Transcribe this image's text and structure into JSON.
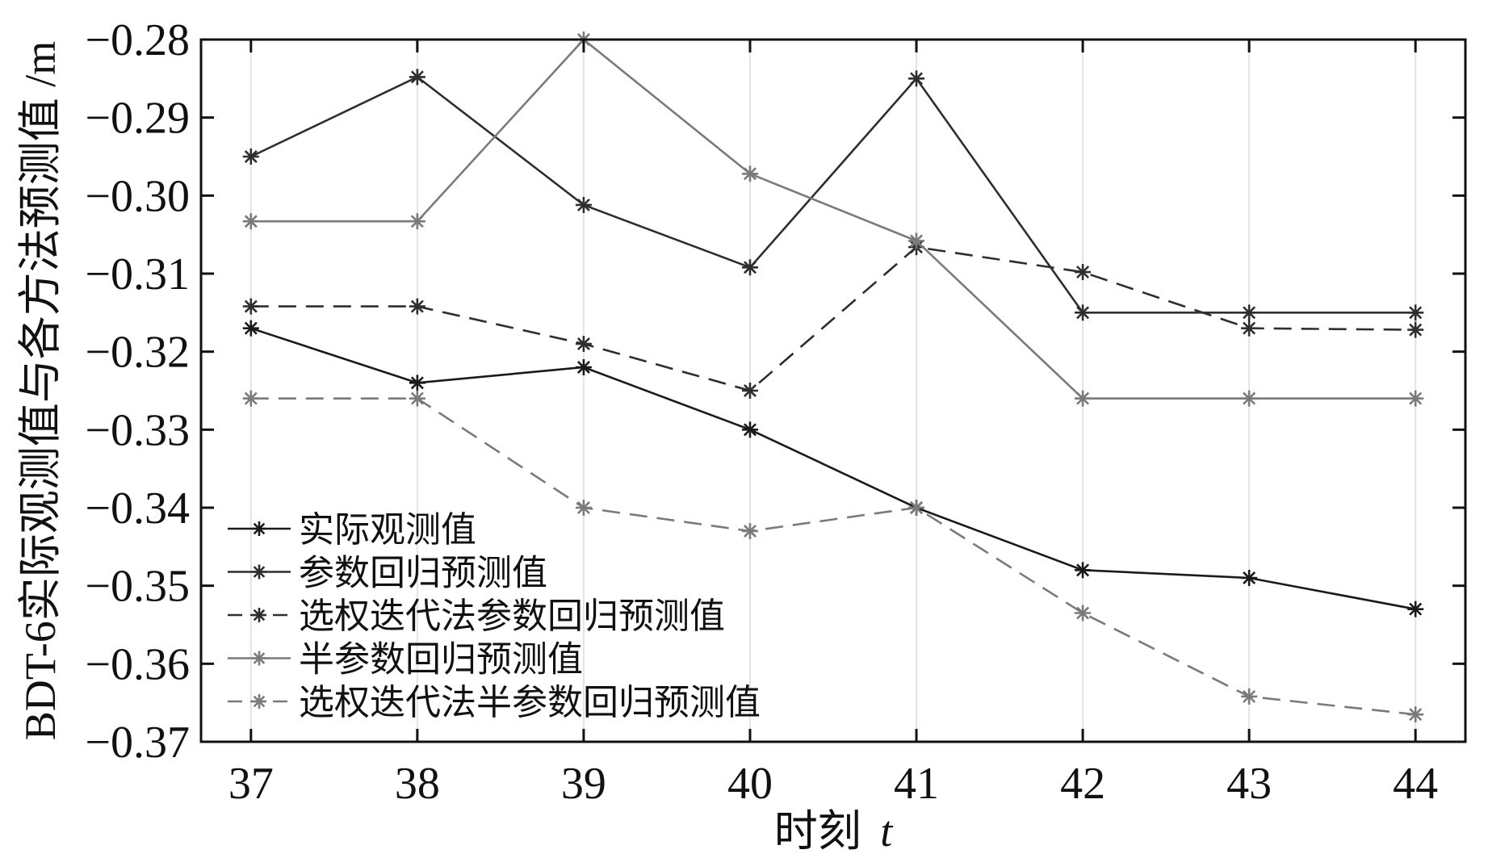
{
  "chart_data": {
    "type": "line",
    "xlabel": "时刻 t",
    "xlabel_main": "时刻",
    "xlabel_var": "t",
    "ylabel": "BDT-6实际观测值与各方法预测值 /m",
    "x": [
      37,
      38,
      39,
      40,
      41,
      42,
      43,
      44
    ],
    "xlim": [
      36.7,
      44.3
    ],
    "ylim": [
      -0.37,
      -0.28
    ],
    "yticks": [
      -0.28,
      -0.29,
      -0.3,
      -0.31,
      -0.32,
      -0.33,
      -0.34,
      -0.35,
      -0.36,
      -0.37
    ],
    "ytick_labels": [
      "−0.28",
      "−0.29",
      "−0.30",
      "−0.31",
      "−0.32",
      "−0.33",
      "−0.34",
      "−0.35",
      "−0.36",
      "−0.37"
    ],
    "grid": "vertical",
    "legend_position": "bottom-left",
    "marker": "asterisk",
    "series": [
      {
        "name": "实际观测值",
        "color": "#1a1a1a",
        "dash": "solid",
        "values": [
          -0.317,
          -0.324,
          -0.322,
          -0.33,
          -0.34,
          -0.348,
          -0.349,
          -0.353
        ]
      },
      {
        "name": "参数回归预测值",
        "color": "#2e2e2e",
        "dash": "solid",
        "values": [
          -0.295,
          -0.2848,
          -0.3012,
          -0.3092,
          -0.285,
          -0.315,
          -0.315,
          -0.315
        ]
      },
      {
        "name": "选权迭代法参数回归预测值",
        "color": "#2e2e2e",
        "dash": "dashed",
        "values": [
          -0.3142,
          -0.3142,
          -0.319,
          -0.325,
          -0.3066,
          -0.3098,
          -0.317,
          -0.3172
        ]
      },
      {
        "name": "半参数回归预测值",
        "color": "#7a7a7a",
        "dash": "solid",
        "values": [
          -0.3033,
          -0.3033,
          -0.28,
          -0.2972,
          -0.3058,
          -0.326,
          -0.326,
          -0.326
        ]
      },
      {
        "name": "选权迭代法半参数回归预测值",
        "color": "#7a7a7a",
        "dash": "dashed",
        "values": [
          -0.326,
          -0.326,
          -0.34,
          -0.343,
          -0.34,
          -0.3535,
          -0.3642,
          -0.3665
        ]
      }
    ]
  }
}
